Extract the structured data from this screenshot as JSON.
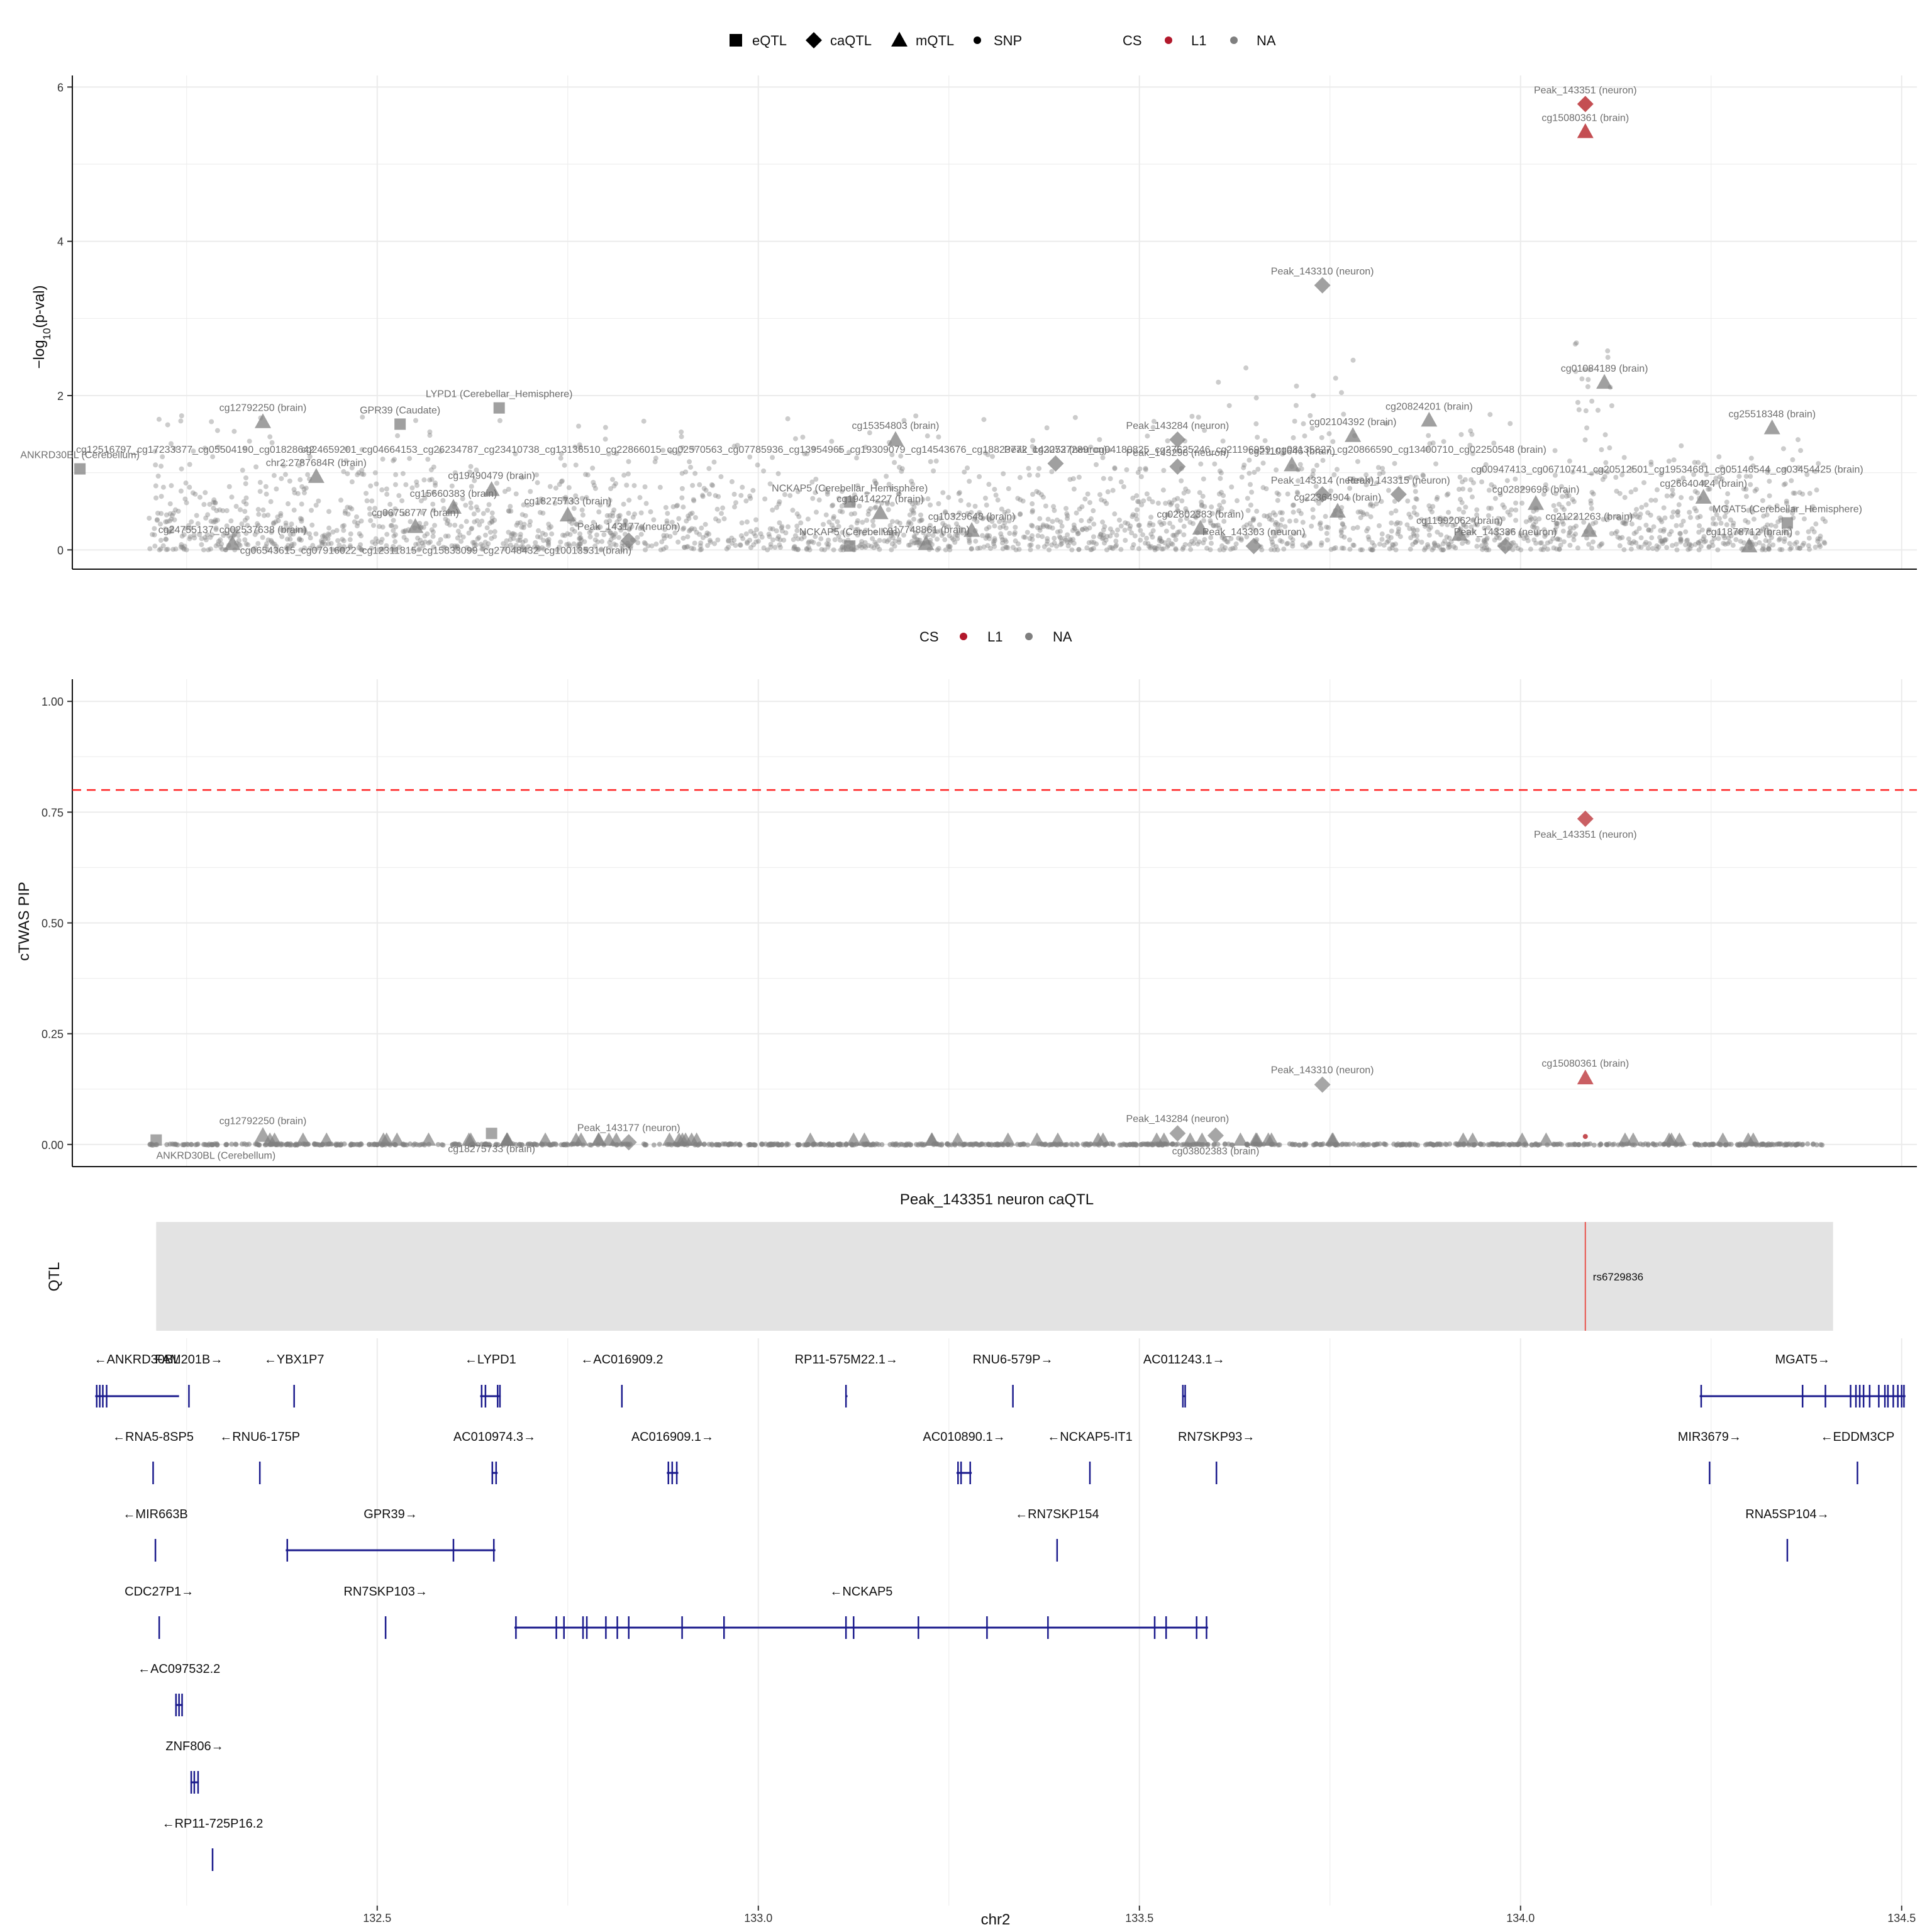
{
  "legend_top": {
    "shapes": [
      {
        "shape": "square",
        "label": "eQTL"
      },
      {
        "shape": "diamond",
        "label": "caQTL"
      },
      {
        "shape": "triangle",
        "label": "mQTL"
      },
      {
        "shape": "dot",
        "label": "SNP"
      }
    ],
    "cs_title": "CS",
    "cs_items": [
      {
        "label": "L1",
        "color": "#b2182b"
      },
      {
        "label": "NA",
        "color": "#7f7f7f"
      }
    ]
  },
  "legend_mid": {
    "cs_title": "CS",
    "cs_items": [
      {
        "label": "L1",
        "color": "#b2182b"
      },
      {
        "label": "NA",
        "color": "#7f7f7f"
      }
    ]
  },
  "colors": {
    "grid": "#ebebeb",
    "gray_point": "#808080",
    "red_point": "#c44e52",
    "threshold": "#ff2222",
    "gene": "#1a1a8c",
    "qtl_band": "#e3e3e3",
    "qtl_line": "#e8554e"
  },
  "chart_data": [
    {
      "type": "scatter",
      "title": "",
      "ylabel_main": "−log",
      "ylabel_sub": "10",
      "ylabel_tail": "(p-val)",
      "xlim": [
        132.1,
        134.52
      ],
      "ylim": [
        -0.25,
        6.15
      ],
      "yticks": [
        "0",
        "2",
        "4",
        "6"
      ],
      "ytick_values": [
        0,
        2,
        4,
        6
      ],
      "labeled_points": [
        {
          "label": "Peak_143351 (neuron)",
          "x": 134.085,
          "y": 5.78,
          "shape": "diamond",
          "cs": "L1"
        },
        {
          "label": "cg15080361 (brain)",
          "x": 134.085,
          "y": 5.42,
          "shape": "triangle",
          "cs": "L1"
        },
        {
          "label": "Peak_143310 (neuron)",
          "x": 133.74,
          "y": 3.43,
          "shape": "diamond",
          "cs": "NA"
        },
        {
          "label": "cg01084189 (brain)",
          "x": 134.11,
          "y": 2.17,
          "shape": "triangle",
          "cs": "NA"
        },
        {
          "label": "cg20824201 (brain)",
          "x": 133.88,
          "y": 1.68,
          "shape": "triangle",
          "cs": "NA"
        },
        {
          "label": "cg25518348 (brain)",
          "x": 134.33,
          "y": 1.58,
          "shape": "triangle",
          "cs": "NA"
        },
        {
          "label": "cg12792250 (brain)",
          "x": 132.35,
          "y": 1.66,
          "shape": "triangle",
          "cs": "NA"
        },
        {
          "label": "GPR39 (Caudate)",
          "x": 132.53,
          "y": 1.63,
          "shape": "square",
          "cs": "NA"
        },
        {
          "label": "LYPD1 (Cerebellar_Hemisphere)",
          "x": 132.66,
          "y": 1.84,
          "shape": "square",
          "cs": "NA"
        },
        {
          "label": "cg15354803 (brain)",
          "x": 133.18,
          "y": 1.43,
          "shape": "triangle",
          "cs": "NA"
        },
        {
          "label": "Peak_143284 (neuron)",
          "x": 133.55,
          "y": 1.43,
          "shape": "diamond",
          "cs": "NA"
        },
        {
          "label": "cg02104392 (brain)",
          "x": 133.78,
          "y": 1.48,
          "shape": "triangle",
          "cs": "NA"
        },
        {
          "label": "ANKRD30BL (Cerebellum)",
          "x": 132.11,
          "y": 1.05,
          "shape": "square",
          "cs": "NA"
        },
        {
          "label": "chr2:2787684R (brain)",
          "x": 132.42,
          "y": 0.95,
          "shape": "triangle",
          "cs": "NA"
        },
        {
          "label": "cg19490479 (brain)",
          "x": 132.65,
          "y": 0.78,
          "shape": "triangle",
          "cs": "NA"
        },
        {
          "label": "cg15660383 (brain)",
          "x": 132.6,
          "y": 0.55,
          "shape": "triangle",
          "cs": "NA"
        },
        {
          "label": "cg06758777 (brain)",
          "x": 132.55,
          "y": 0.3,
          "shape": "triangle",
          "cs": "NA"
        },
        {
          "label": "cg18275733 (brain)",
          "x": 132.75,
          "y": 0.45,
          "shape": "triangle",
          "cs": "NA"
        },
        {
          "label": "NCKAP5 (Cerebellar_Hemisphere)",
          "x": 133.12,
          "y": 0.62,
          "shape": "square",
          "cs": "NA"
        },
        {
          "label": "cg19414227 (brain)",
          "x": 133.16,
          "y": 0.48,
          "shape": "triangle",
          "cs": "NA"
        },
        {
          "label": "NCKAP5 (Cerebellum)",
          "x": 133.12,
          "y": 0.05,
          "shape": "square",
          "cs": "NA"
        },
        {
          "label": "cg10329648 (brain)",
          "x": 133.28,
          "y": 0.25,
          "shape": "triangle",
          "cs": "NA"
        },
        {
          "label": "cg17748861 (brain)",
          "x": 133.22,
          "y": 0.08,
          "shape": "triangle",
          "cs": "NA"
        },
        {
          "label": "Peak_143252 (neuron)",
          "x": 133.39,
          "y": 1.12,
          "shape": "diamond",
          "cs": "NA"
        },
        {
          "label": "Peak_143298 (neuron)",
          "x": 133.55,
          "y": 1.08,
          "shape": "diamond",
          "cs": "NA"
        },
        {
          "label": "cg21101646 (brain)",
          "x": 133.7,
          "y": 1.1,
          "shape": "triangle",
          "cs": "NA"
        },
        {
          "label": "Peak_143314 (neuron)",
          "x": 133.74,
          "y": 0.72,
          "shape": "diamond",
          "cs": "NA"
        },
        {
          "label": "Peak_143315 (neuron)",
          "x": 133.84,
          "y": 0.72,
          "shape": "diamond",
          "cs": "NA"
        },
        {
          "label": "cg22364904 (brain)",
          "x": 133.76,
          "y": 0.5,
          "shape": "triangle",
          "cs": "NA"
        },
        {
          "label": "cg02802383 (brain)",
          "x": 133.58,
          "y": 0.28,
          "shape": "triangle",
          "cs": "NA"
        },
        {
          "label": "cg11992062 (brain)",
          "x": 133.92,
          "y": 0.2,
          "shape": "triangle",
          "cs": "NA"
        },
        {
          "label": "cg02829696 (brain)",
          "x": 134.02,
          "y": 0.6,
          "shape": "triangle",
          "cs": "NA"
        },
        {
          "label": "cg21221263 (brain)",
          "x": 134.09,
          "y": 0.25,
          "shape": "triangle",
          "cs": "NA"
        },
        {
          "label": "cg26640424 (brain)",
          "x": 134.24,
          "y": 0.68,
          "shape": "triangle",
          "cs": "NA"
        },
        {
          "label": "MGAT5 (Cerebellar_Hemisphere)",
          "x": 134.35,
          "y": 0.35,
          "shape": "square",
          "cs": "NA"
        },
        {
          "label": "cg11878712 (brain)",
          "x": 134.3,
          "y": 0.05,
          "shape": "triangle",
          "cs": "NA"
        },
        {
          "label": "Peak_143303 (neuron)",
          "x": 133.65,
          "y": 0.05,
          "shape": "diamond",
          "cs": "NA"
        },
        {
          "label": "Peak_143336 (neuron)",
          "x": 133.98,
          "y": 0.05,
          "shape": "diamond",
          "cs": "NA"
        },
        {
          "label": "Peak_143177 (neuron)",
          "x": 132.83,
          "y": 0.12,
          "shape": "diamond",
          "cs": "NA"
        },
        {
          "label": "cg24755137_cg02537638 (brain)",
          "x": 132.31,
          "y": 0.08,
          "shape": "triangle",
          "cs": "NA"
        }
      ],
      "text_annotations": [
        {
          "text": "cg12516797_cg17233377_cg05504190_cg01828642",
          "x": 132.105,
          "y": 1.26,
          "anchor": "start"
        },
        {
          "text": "cg24659201_cg04664153_cg26234787_cg23410738_cg13136510_cg22866015_cg02570563_cg07785936_cg13954965_cg19309079_cg14543676_cg18823772_cg20737289_cg04180825_cg27625246_cg21196959_cg08135827_cg20866590_cg13400710_cg02250548 (brain)",
          "x": 132.4,
          "y": 1.26,
          "anchor": "start"
        },
        {
          "text": "cg00947413_cg06710741_cg20512501_cg19534681_cg05146544_cg03454425 (brain)",
          "x": 133.935,
          "y": 1.0,
          "anchor": "start"
        },
        {
          "text": "cg06543615_cg07916022_cg12311815_cg15833099_cg27048432_cg10013531 (brain)",
          "x": 132.32,
          "y": -0.05,
          "anchor": "start"
        }
      ]
    },
    {
      "type": "scatter",
      "title": "",
      "ylabel": "cTWAS PIP",
      "xlim": [
        132.1,
        134.52
      ],
      "ylim": [
        -0.05,
        1.05
      ],
      "yticks": [
        "0.00",
        "0.25",
        "0.50",
        "0.75",
        "1.00"
      ],
      "ytick_values": [
        0,
        0.25,
        0.5,
        0.75,
        1.0
      ],
      "threshold": 0.8,
      "labeled_points": [
        {
          "label": "Peak_143351 (neuron)",
          "x": 134.085,
          "y": 0.735,
          "shape": "diamond",
          "cs": "L1"
        },
        {
          "label": "cg15080361 (brain)",
          "x": 134.085,
          "y": 0.15,
          "shape": "triangle",
          "cs": "L1"
        },
        {
          "label": "Peak_143310 (neuron)",
          "x": 133.74,
          "y": 0.135,
          "shape": "diamond",
          "cs": "NA"
        },
        {
          "label": "cg12792250 (brain)",
          "x": 132.35,
          "y": 0.02,
          "shape": "triangle",
          "cs": "NA"
        },
        {
          "label": "Peak_143177 (neuron)",
          "x": 132.83,
          "y": 0.005,
          "shape": "diamond",
          "cs": "NA"
        },
        {
          "label": "Peak_143284 (neuron)",
          "x": 133.55,
          "y": 0.025,
          "shape": "diamond",
          "cs": "NA"
        },
        {
          "label": "ANKRD30BL (Cerebellum)",
          "x": 132.21,
          "y": 0.01,
          "shape": "square",
          "cs": "NA"
        },
        {
          "label": "cg18275733 (brain)",
          "x": 132.65,
          "y": 0.025,
          "shape": "square",
          "cs": "NA"
        },
        {
          "label": "cg03802383 (brain)",
          "x": 133.6,
          "y": 0.02,
          "shape": "diamond",
          "cs": "NA"
        }
      ]
    },
    {
      "type": "track",
      "title": "Peak_143351 neuron caQTL",
      "ylabel": "QTL",
      "band_range": [
        132.21,
        134.41
      ],
      "snp": {
        "label": "rs6729836",
        "x": 134.085
      }
    },
    {
      "type": "genes",
      "xlabel": "chr2",
      "xlim": [
        132.1,
        134.52
      ],
      "xticks": [
        "132.5",
        "133.0",
        "133.5",
        "134.0",
        "134.5"
      ],
      "xtick_values": [
        132.5,
        133.0,
        133.5,
        134.0,
        134.5
      ],
      "genes": [
        {
          "label": "←ANKRD30BL",
          "start": 132.13,
          "end": 132.24,
          "row": 0,
          "exons": [
            132.132,
            132.136,
            132.14,
            132.145
          ]
        },
        {
          "label": "FAM201B→",
          "start": 132.252,
          "end": 132.254,
          "row": 0,
          "exons": [
            132.253
          ]
        },
        {
          "label": "←YBX1P7",
          "start": 132.39,
          "end": 132.392,
          "row": 0,
          "exons": [
            132.391
          ]
        },
        {
          "label": "←LYPD1",
          "start": 132.635,
          "end": 132.662,
          "row": 0,
          "exons": [
            132.637,
            132.642,
            132.658,
            132.661
          ]
        },
        {
          "label": "←AC016909.2",
          "start": 132.82,
          "end": 132.822,
          "row": 0,
          "exons": [
            132.821
          ]
        },
        {
          "label": "RP11-575M22.1→",
          "start": 133.114,
          "end": 133.117,
          "row": 0,
          "exons": [
            133.115
          ]
        },
        {
          "label": "RNU6-579P→",
          "start": 133.333,
          "end": 133.335,
          "row": 0,
          "exons": [
            133.334
          ]
        },
        {
          "label": "AC011243.1→",
          "start": 133.556,
          "end": 133.561,
          "row": 0,
          "exons": [
            133.557,
            133.56
          ]
        },
        {
          "label": "MGAT5→",
          "start": 134.235,
          "end": 134.505,
          "row": 0,
          "exons": [
            134.237,
            134.37,
            134.4,
            134.433,
            134.44,
            134.445,
            134.45,
            134.458,
            134.47,
            134.478,
            134.482,
            134.489,
            134.495,
            134.5,
            134.503
          ]
        },
        {
          "label": "←RNA5-8SP5",
          "start": 132.205,
          "end": 132.207,
          "row": 1,
          "exons": [
            132.206
          ]
        },
        {
          "label": "←RNU6-175P",
          "start": 132.345,
          "end": 132.347,
          "row": 1,
          "exons": [
            132.346
          ]
        },
        {
          "label": "AC010974.3→",
          "start": 132.65,
          "end": 132.658,
          "row": 1,
          "exons": [
            132.651,
            132.656
          ]
        },
        {
          "label": "AC016909.1→",
          "start": 132.88,
          "end": 132.895,
          "row": 1,
          "exons": [
            132.882,
            132.887,
            132.893
          ]
        },
        {
          "label": "AC010890.1→",
          "start": 133.26,
          "end": 133.28,
          "row": 1,
          "exons": [
            133.262,
            133.266,
            133.278
          ]
        },
        {
          "label": "←NCKAP5-IT1",
          "start": 133.434,
          "end": 133.436,
          "row": 1,
          "exons": [
            133.435
          ]
        },
        {
          "label": "RN7SKP93→",
          "start": 133.6,
          "end": 133.602,
          "row": 1,
          "exons": [
            133.601
          ]
        },
        {
          "label": "MIR3679→",
          "start": 134.247,
          "end": 134.249,
          "row": 1,
          "exons": [
            134.248
          ]
        },
        {
          "label": "←EDDM3CP",
          "start": 134.441,
          "end": 134.443,
          "row": 1,
          "exons": [
            134.442
          ]
        },
        {
          "label": "←MIR663B",
          "start": 132.208,
          "end": 132.21,
          "row": 2,
          "exons": [
            132.209
          ]
        },
        {
          "label": "GPR39→",
          "start": 132.38,
          "end": 132.655,
          "row": 2,
          "exons": [
            132.382,
            132.6,
            132.653
          ]
        },
        {
          "label": "←RN7SKP154",
          "start": 133.391,
          "end": 133.393,
          "row": 2,
          "exons": [
            133.392
          ]
        },
        {
          "label": "RNA5SP104→",
          "start": 134.349,
          "end": 134.351,
          "row": 2,
          "exons": [
            134.35
          ]
        },
        {
          "label": "CDC27P1→",
          "start": 132.213,
          "end": 132.215,
          "row": 3,
          "exons": [
            132.214
          ]
        },
        {
          "label": "RN7SKP103→",
          "start": 132.51,
          "end": 132.512,
          "row": 3,
          "exons": [
            132.511
          ]
        },
        {
          "label": "←NCKAP5",
          "start": 132.68,
          "end": 133.59,
          "row": 3,
          "exons": [
            132.682,
            132.735,
            132.745,
            132.77,
            132.775,
            132.8,
            132.815,
            132.83,
            132.9,
            132.955,
            133.115,
            133.125,
            133.21,
            133.3,
            133.38,
            133.52,
            133.535,
            133.575,
            133.588
          ]
        },
        {
          "label": "←AC097532.2",
          "start": 132.235,
          "end": 132.245,
          "row": 4,
          "exons": [
            132.236,
            132.24,
            132.244
          ]
        },
        {
          "label": "ZNF806→",
          "start": 132.255,
          "end": 132.266,
          "row": 5,
          "exons": [
            132.256,
            132.26,
            132.265
          ]
        },
        {
          "label": "←RP11-725P16.2",
          "start": 132.283,
          "end": 132.285,
          "row": 6,
          "exons": [
            132.284
          ]
        }
      ]
    }
  ]
}
